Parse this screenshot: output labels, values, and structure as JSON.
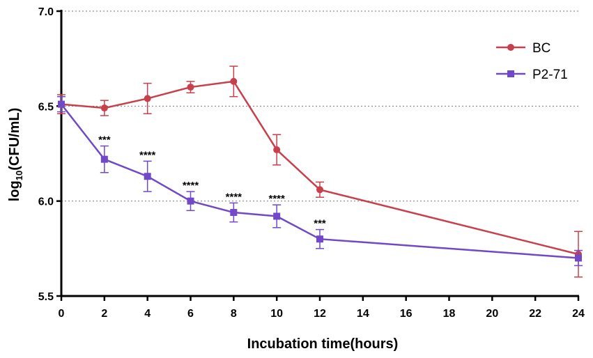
{
  "chart_data": {
    "type": "line",
    "title": "",
    "xlabel": "Incubation time(hours)",
    "ylabel_main": "log",
    "ylabel_sub": "10",
    "ylabel_rest": "(CFU/mL)",
    "xlim": [
      0,
      24
    ],
    "ylim": [
      5.5,
      7.0
    ],
    "x_ticks": [
      0,
      2,
      4,
      6,
      8,
      10,
      12,
      14,
      16,
      18,
      20,
      22,
      24
    ],
    "y_ticks": [
      5.5,
      6.0,
      6.5,
      7.0
    ],
    "y_tick_labels": [
      "5.5",
      "6.0",
      "6.5",
      "7.0"
    ],
    "gridlines_y": [
      6.0,
      6.5,
      7.0
    ],
    "legend_position": "top-right",
    "series": [
      {
        "name": "BC",
        "color": "#c8404c",
        "marker": "circle",
        "x": [
          0,
          2,
          4,
          6,
          8,
          10,
          12,
          24
        ],
        "y": [
          6.51,
          6.49,
          6.54,
          6.6,
          6.63,
          6.27,
          6.06,
          5.72
        ],
        "err": [
          0.05,
          0.04,
          0.08,
          0.03,
          0.08,
          0.08,
          0.04,
          0.12
        ]
      },
      {
        "name": "P2-71",
        "color": "#7048c8",
        "marker": "square",
        "x": [
          0,
          2,
          4,
          6,
          8,
          10,
          12,
          24
        ],
        "y": [
          6.51,
          6.22,
          6.13,
          6.0,
          5.94,
          5.92,
          5.8,
          5.7
        ],
        "err": [
          0.04,
          0.07,
          0.08,
          0.05,
          0.05,
          0.06,
          0.05,
          0.04
        ]
      }
    ],
    "annotations": [
      {
        "x": 2,
        "text": "***"
      },
      {
        "x": 4,
        "text": "****"
      },
      {
        "x": 6,
        "text": "****"
      },
      {
        "x": 8,
        "text": "****"
      },
      {
        "x": 10,
        "text": "****"
      },
      {
        "x": 12,
        "text": "***"
      }
    ]
  }
}
